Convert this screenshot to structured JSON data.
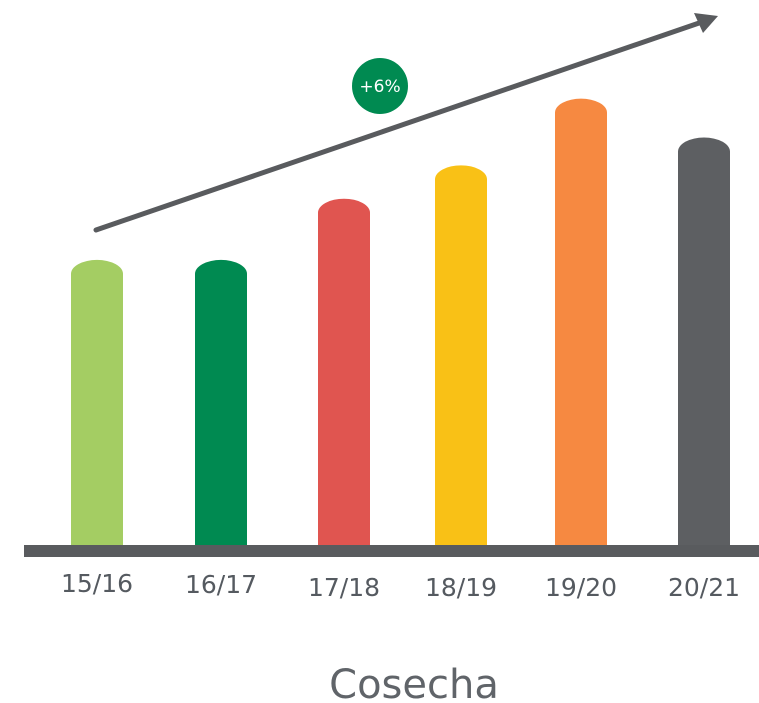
{
  "chart_data": {
    "type": "bar",
    "title": "",
    "xlabel": "Cosecha",
    "ylabel": "",
    "categories": [
      "15/16",
      "16/17",
      "17/18",
      "18/19",
      "19/20",
      "20/21"
    ],
    "values": [
      52,
      52,
      63,
      69,
      81,
      74
    ],
    "colors": [
      "#a4cd63",
      "#008a51",
      "#e05550",
      "#f9c116",
      "#f68941",
      "#5d5f62"
    ],
    "ylim": [
      0,
      100
    ],
    "grid": false,
    "legend": "none",
    "annotations": {
      "trend_arrow": true,
      "badge_text": "+6%",
      "badge_color": "#008a51",
      "axis_color": "#595b5e"
    }
  }
}
